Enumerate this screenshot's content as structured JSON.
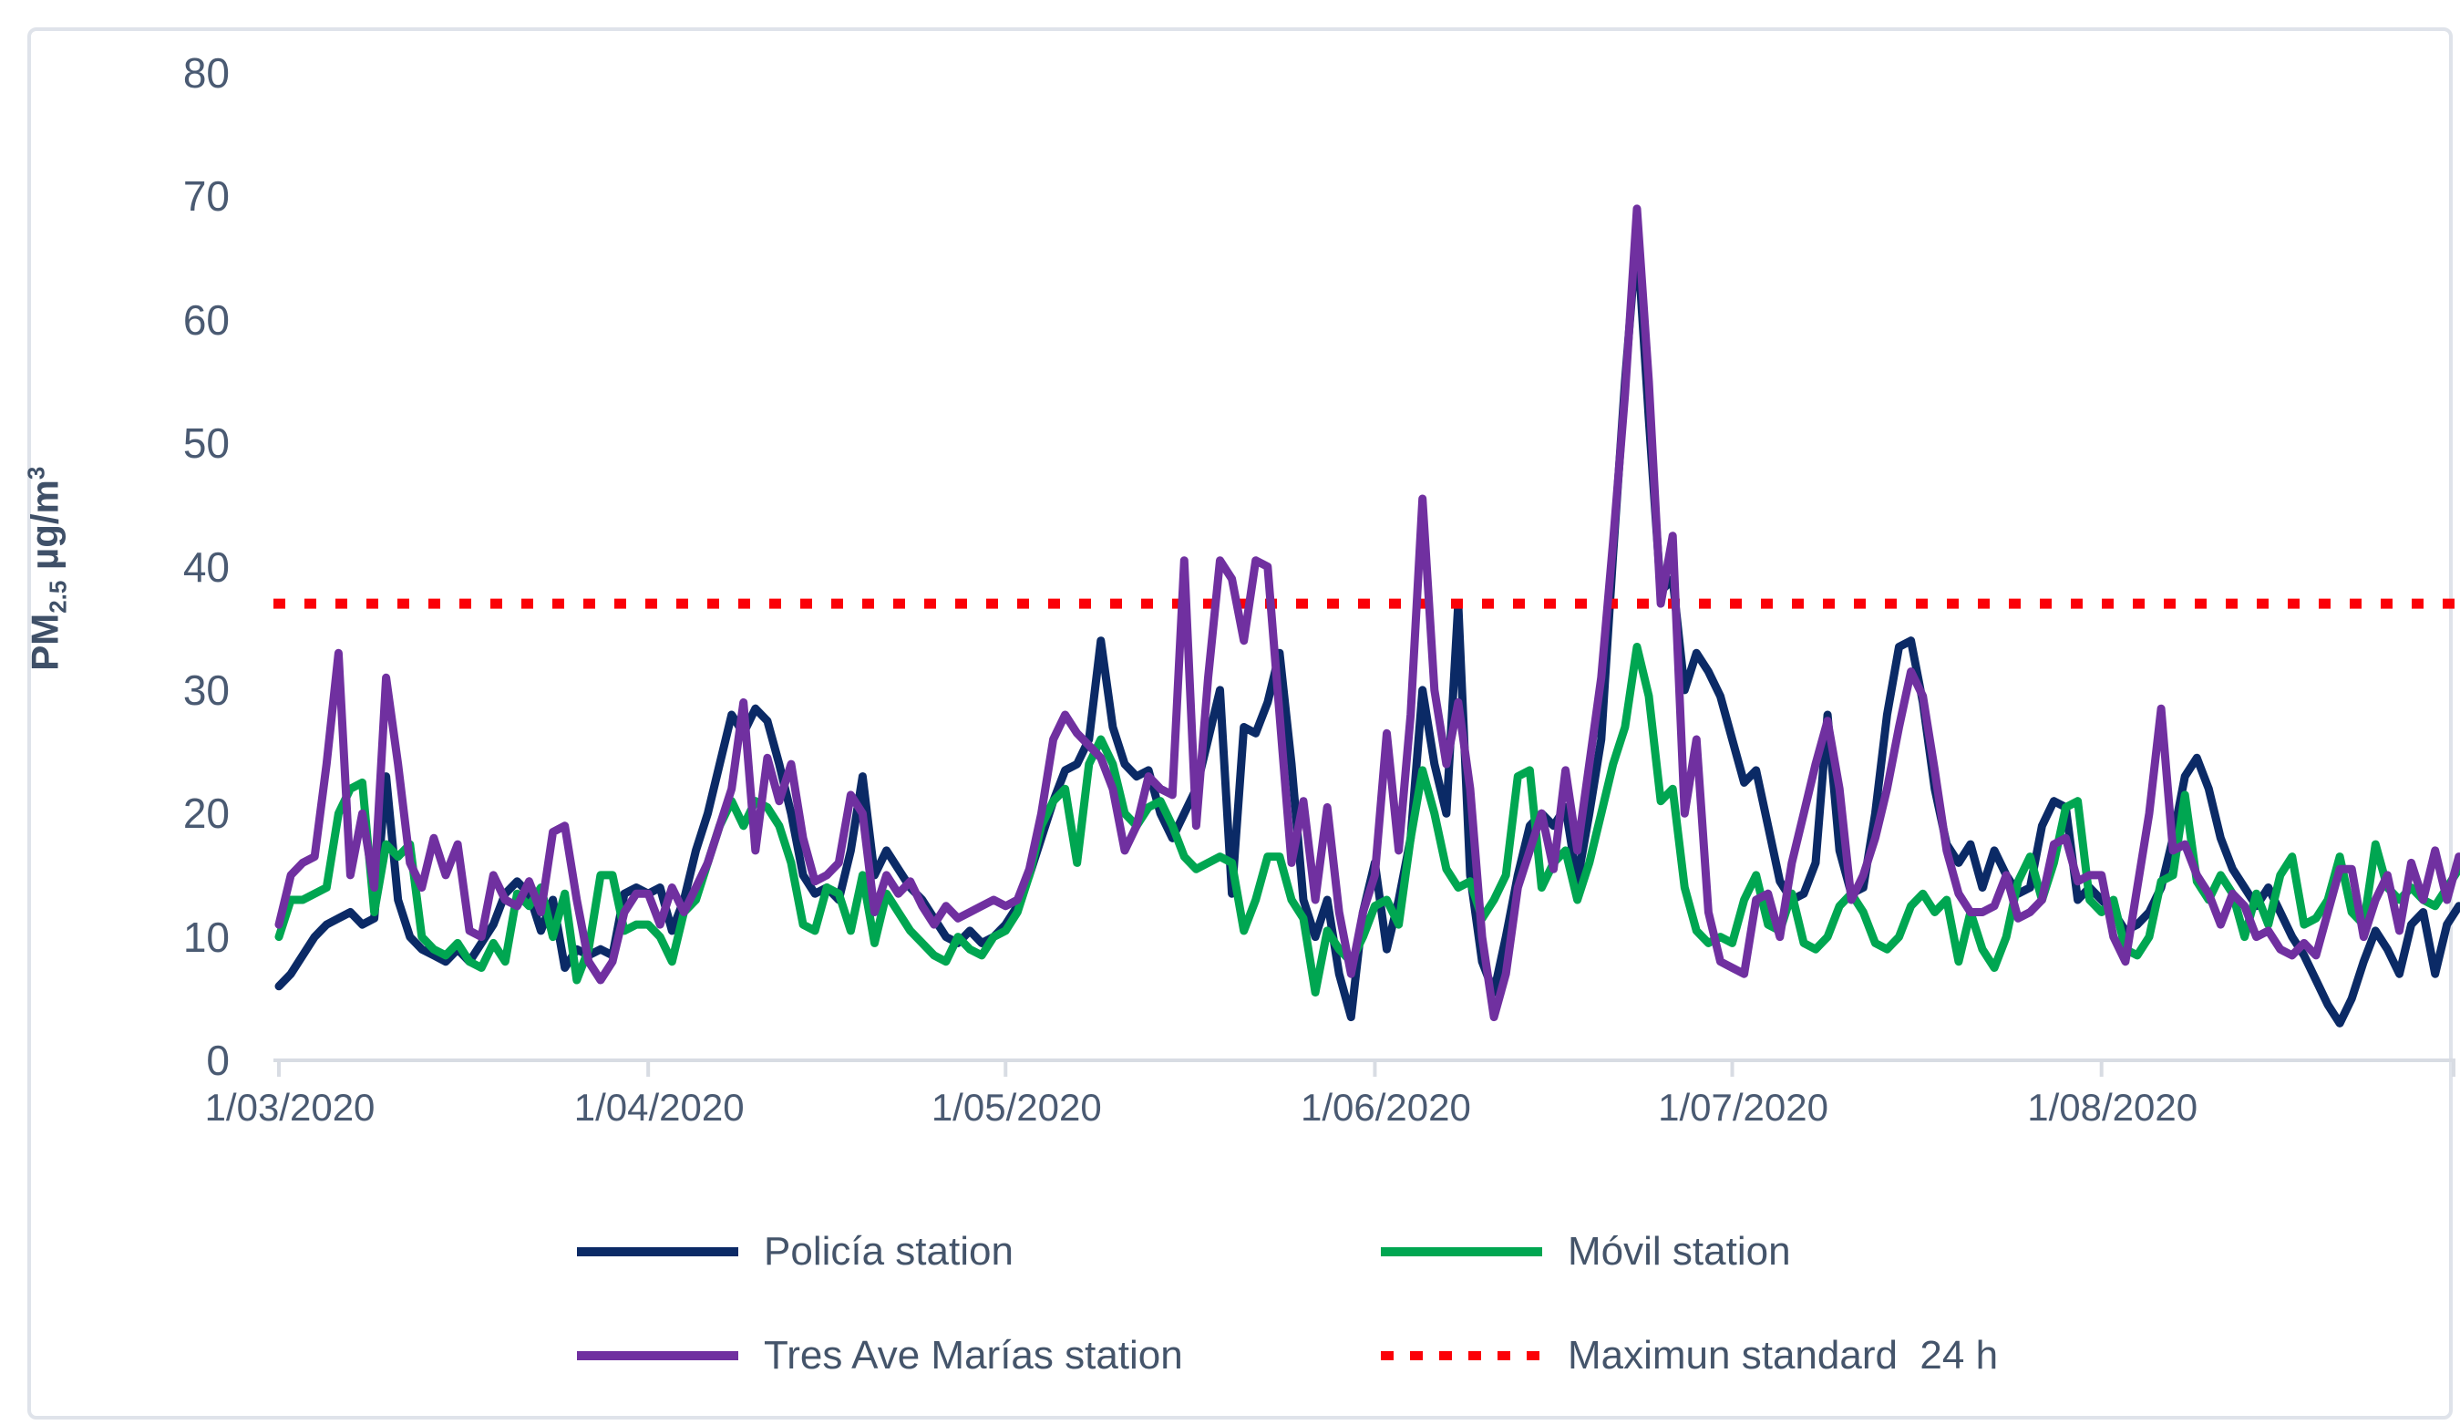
{
  "chart_data": {
    "type": "line",
    "title": "",
    "ylabel": "PM2.5 µg/m³",
    "ylabel_parts": {
      "main": "PM",
      "sub": "2.5",
      "unit": " µg/m",
      "sup": "3"
    },
    "ylim": [
      0,
      80
    ],
    "yticks": [
      0,
      10,
      20,
      30,
      40,
      50,
      60,
      70,
      80
    ],
    "grid": false,
    "legend_position": "bottom",
    "x_axis": {
      "start_label": "1/03/2020",
      "tick_days": [
        0,
        31,
        61,
        92,
        122,
        153,
        183
      ],
      "labels": [
        {
          "label": "1/03/2020",
          "day": 0
        },
        {
          "label": "1/04/2020",
          "day": 31
        },
        {
          "label": "1/05/2020",
          "day": 61
        },
        {
          "label": "1/06/2020",
          "day": 92
        },
        {
          "label": "1/07/2020",
          "day": 122
        },
        {
          "label": "1/08/2020",
          "day": 153
        }
      ]
    },
    "threshold": {
      "label": "Maximun standard  24 h",
      "value": 37,
      "color": "#fb0007"
    },
    "series": [
      {
        "name": "Policía station",
        "color": "#0b2a66",
        "values": [
          6,
          7,
          8.5,
          10,
          11,
          11.5,
          12,
          11,
          11.5,
          23,
          13,
          10,
          9,
          8.5,
          8,
          9,
          8,
          9.5,
          11,
          13.5,
          14.5,
          13.5,
          10.5,
          13,
          7.5,
          9,
          8.5,
          9,
          8.5,
          13.5,
          14,
          13.5,
          14,
          10.5,
          13,
          17,
          20,
          24,
          28,
          26.5,
          28.5,
          27.5,
          24,
          20,
          15,
          13.5,
          14,
          13,
          17,
          23,
          15,
          17,
          15.5,
          14,
          13,
          11.5,
          10,
          9.5,
          10.5,
          9.5,
          10,
          11,
          12.5,
          15,
          18,
          21,
          23.5,
          24,
          26,
          34,
          27,
          24,
          23,
          23.5,
          20,
          18,
          20,
          22,
          26,
          30,
          13.5,
          27,
          26.5,
          29,
          33,
          24,
          13,
          10,
          13,
          7,
          3.5,
          12,
          16,
          9,
          13,
          18,
          30,
          24,
          20,
          37,
          15,
          8,
          5.5,
          10,
          15,
          19,
          20,
          19,
          20.5,
          14.5,
          20,
          26,
          41,
          55,
          67,
          52,
          38,
          39,
          30,
          33,
          31.5,
          29.5,
          26,
          22.5,
          23.5,
          19,
          14.5,
          13,
          13.5,
          16,
          28,
          17,
          13.5,
          14,
          20,
          28,
          33.5,
          34,
          29,
          22,
          17.5,
          16,
          17.5,
          14,
          17,
          15,
          13.5,
          14,
          19,
          21,
          20.5,
          13,
          14,
          13,
          12,
          10.5,
          11,
          12,
          14,
          18,
          23,
          24.5,
          22,
          18,
          15.5,
          14,
          12.5,
          14,
          12,
          10,
          8.5,
          6.5,
          4.5,
          3,
          5,
          8,
          10.5,
          9,
          7,
          11,
          12,
          7,
          11,
          12.5
        ]
      },
      {
        "name": "Móvil station",
        "color": "#00a651",
        "values": [
          10,
          13,
          13,
          13.5,
          14,
          20,
          22,
          22.5,
          12,
          17.5,
          16.5,
          17.5,
          10,
          9,
          8.5,
          9.5,
          8,
          7.5,
          9.5,
          8,
          13.5,
          12.5,
          14,
          10,
          13.5,
          6.5,
          9,
          15,
          15,
          10.5,
          11,
          11,
          10,
          8,
          12,
          13,
          16,
          19,
          21,
          19,
          21,
          20.5,
          19,
          16,
          11,
          10.5,
          14,
          13.5,
          10.5,
          15,
          9.5,
          13.5,
          12,
          10.5,
          9.5,
          8.5,
          8,
          10,
          9,
          8.5,
          10,
          10.5,
          12,
          15,
          19,
          21,
          22,
          16,
          24,
          26,
          24,
          20,
          19,
          20.5,
          21,
          19,
          16.5,
          15.5,
          16,
          16.5,
          16,
          10.5,
          13,
          16.5,
          16.5,
          13,
          11.5,
          5.5,
          10.5,
          9,
          8,
          10,
          12.5,
          13,
          11,
          18,
          23.5,
          20,
          15.5,
          14,
          14.5,
          11.5,
          13,
          15,
          23,
          23.5,
          14,
          16,
          17,
          13,
          16,
          20,
          24,
          27,
          33.5,
          29.5,
          21,
          22,
          14,
          10.5,
          9.5,
          10,
          9.5,
          13,
          15,
          11,
          10.5,
          13.5,
          9.5,
          9,
          10,
          12.5,
          13.5,
          12,
          9.5,
          9,
          10,
          12.5,
          13.5,
          12,
          13,
          8,
          12,
          9,
          7.5,
          10,
          14.5,
          16.5,
          13,
          16,
          20.5,
          21,
          13,
          12,
          13,
          9,
          8.5,
          10,
          14.5,
          15,
          21.5,
          14.5,
          13,
          15,
          13.5,
          10,
          13.5,
          11,
          15,
          16.5,
          11,
          11.5,
          13,
          16.5,
          12,
          11,
          17.5,
          14,
          13,
          14,
          13,
          12.5,
          14,
          15.5
        ]
      },
      {
        "name": "Tres Ave Marías station",
        "color": "#7030A0",
        "values": [
          11,
          15,
          16,
          16.5,
          24,
          33,
          15,
          20,
          14,
          31,
          24,
          16,
          14,
          18,
          15,
          17.5,
          10.5,
          10,
          15,
          13,
          12.5,
          14.5,
          12,
          18.5,
          19,
          13,
          8,
          6.5,
          8,
          12,
          13.5,
          13.5,
          11,
          14,
          12,
          14,
          16,
          19,
          22,
          29,
          17,
          24.5,
          21,
          24,
          18,
          14.5,
          15,
          16,
          21.5,
          20,
          12,
          15,
          13.5,
          14.5,
          12.5,
          11,
          12.5,
          11.5,
          12,
          12.5,
          13,
          12.5,
          13,
          15.5,
          20,
          26,
          28,
          26.5,
          25.5,
          24.5,
          22,
          17,
          19,
          23,
          22,
          21.5,
          40.5,
          19,
          31,
          40.5,
          39,
          34,
          40.5,
          40,
          28,
          16,
          21,
          13,
          20.5,
          12,
          7,
          12,
          15,
          26.5,
          17,
          28,
          45.5,
          30,
          24,
          29,
          22,
          10,
          3.5,
          7,
          14,
          17,
          20,
          15.5,
          23.5,
          17,
          24,
          31,
          42,
          54,
          69,
          55,
          37,
          42.5,
          20,
          26,
          12,
          8,
          7.5,
          7,
          13,
          13.5,
          10,
          16,
          20,
          24,
          27.5,
          22,
          13,
          15,
          18,
          22,
          27,
          31.5,
          29.5,
          23.5,
          17,
          13.5,
          12,
          12,
          12.5,
          15,
          11.5,
          12,
          13,
          17.5,
          18,
          14.5,
          15,
          15,
          10,
          8,
          14,
          20,
          28.5,
          17,
          17.5,
          15,
          13.5,
          11,
          13.5,
          12.5,
          10,
          10.5,
          9,
          8.5,
          9.5,
          8.5,
          12,
          15.5,
          15.5,
          10,
          13,
          15,
          10.5,
          16,
          13,
          17,
          13,
          16.5
        ]
      }
    ]
  },
  "legend": {
    "items": [
      {
        "label": "Policía station",
        "color": "#0b2a66",
        "style": "solid"
      },
      {
        "label": "Móvil station",
        "color": "#00a651",
        "style": "solid"
      },
      {
        "label": "Tres Ave Marías station",
        "color": "#7030A0",
        "style": "solid"
      },
      {
        "label": "Maximun standard  24 h",
        "color": "#fb0007",
        "style": "dotted"
      }
    ]
  },
  "colors": {
    "axis_text": "#4a5a72",
    "axis_line": "#d8dce3",
    "frame_border": "#dfe3ea",
    "threshold": "#fb0007"
  }
}
